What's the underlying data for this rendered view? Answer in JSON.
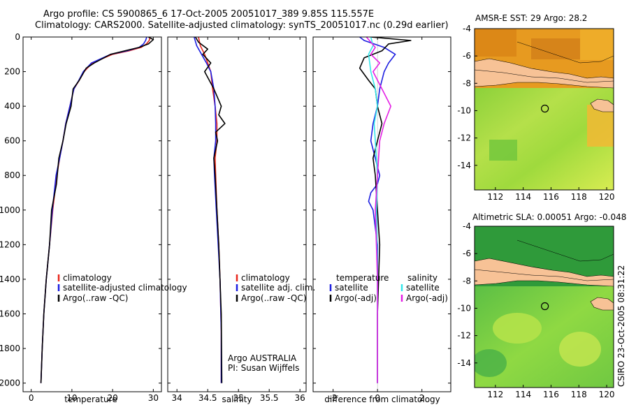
{
  "header": {
    "line1": "Argo profile: CS 5900865_6 17-Oct-2005 20051017_389 9.85S 115.557E",
    "line2": "Climatology: CARS2000. Satellite-adjusted climatology: synTS_20051017.nc (0.29d earlier)"
  },
  "side_label": "CSIRO 23-Oct-2005 08:31:22",
  "colors": {
    "red": "#e8261c",
    "blue": "#1c1ee0",
    "black": "#000000",
    "cyan": "#33e6ea",
    "magenta": "#e41ee4",
    "land": "#f7c296",
    "ocean_green": "#3aa83c"
  },
  "chart_data": [
    {
      "type": "line",
      "id": "temperature",
      "xlabel": "temperature",
      "ylabel": "",
      "xlim": [
        -2,
        32
      ],
      "ylim": [
        2050,
        0
      ],
      "xticks": [
        0,
        10,
        20,
        30
      ],
      "yticks": [
        0,
        200,
        400,
        600,
        800,
        1000,
        1200,
        1400,
        1600,
        1800,
        2000
      ],
      "legend": [
        "climatology",
        "satellite-adjusted climatology",
        "Argo(..raw -QC)"
      ],
      "series": [
        {
          "name": "climatology",
          "color": "red",
          "x": [
            29.2,
            29,
            28.3,
            27,
            24,
            20,
            15,
            13,
            11.8,
            10.5,
            9.5,
            8.5,
            7.8,
            7.0,
            6.3,
            5.3,
            4.5,
            3.7,
            3.1,
            2.7,
            2.4
          ],
          "y": [
            0,
            20,
            40,
            60,
            80,
            100,
            150,
            200,
            250,
            300,
            400,
            500,
            600,
            700,
            800,
            1000,
            1200,
            1400,
            1600,
            1800,
            2000
          ]
        },
        {
          "name": "satellite-adjusted climatology",
          "color": "blue",
          "x": [
            28.4,
            28.1,
            27.6,
            26.5,
            23.5,
            19.5,
            14.8,
            12.8,
            11.7,
            10.5,
            9.5,
            8.5,
            7.8,
            7.0,
            6.1,
            5.2,
            4.5,
            3.7,
            3.1,
            2.7,
            2.4
          ],
          "y": [
            0,
            20,
            40,
            60,
            80,
            100,
            150,
            200,
            250,
            300,
            400,
            500,
            600,
            700,
            800,
            1000,
            1200,
            1400,
            1600,
            1800,
            2000
          ]
        },
        {
          "name": "Argo(..raw -QC)",
          "color": "black",
          "x": [
            28.8,
            30.0,
            28.8,
            26.5,
            23.0,
            19.5,
            15.5,
            13.5,
            11.8,
            10.3,
            9.8,
            8.6,
            7.8,
            6.8,
            6.2,
            5.0,
            4.5,
            3.7,
            3.1,
            2.7,
            2.4
          ],
          "y": [
            0,
            15,
            40,
            60,
            80,
            100,
            150,
            180,
            250,
            300,
            400,
            500,
            600,
            700,
            850,
            1000,
            1200,
            1400,
            1600,
            1800,
            2000
          ]
        }
      ]
    },
    {
      "type": "line",
      "id": "salinity",
      "xlabel": "salinity",
      "ylabel": "",
      "xlim": [
        33.85,
        36.1
      ],
      "ylim": [
        2050,
        0
      ],
      "xticks": [
        34,
        34.5,
        35,
        35.5,
        36
      ],
      "yticks": [
        0,
        200,
        400,
        600,
        800,
        1000,
        1200,
        1400,
        1600,
        1800,
        2000
      ],
      "legend": [
        "climatology",
        "satellite adj. clim.",
        "Argo(..raw -QC)"
      ],
      "annotation": [
        "Argo AUSTRALIA",
        "PI: Susan Wijffels"
      ],
      "series": [
        {
          "name": "climatology",
          "color": "red",
          "x": [
            34.35,
            34.38,
            34.45,
            34.5,
            34.55,
            34.58,
            34.62,
            34.65,
            34.65,
            34.62,
            34.63,
            34.65,
            34.68,
            34.7,
            34.72,
            34.72
          ],
          "y": [
            0,
            50,
            100,
            150,
            200,
            300,
            400,
            500,
            600,
            700,
            800,
            1000,
            1200,
            1400,
            1700,
            2000
          ]
        },
        {
          "name": "satellite adj. clim.",
          "color": "blue",
          "x": [
            34.28,
            34.32,
            34.4,
            34.48,
            34.55,
            34.6,
            34.62,
            34.63,
            34.63,
            34.6,
            34.61,
            34.64,
            34.67,
            34.7,
            34.72,
            34.72
          ],
          "y": [
            0,
            50,
            100,
            150,
            200,
            300,
            400,
            500,
            600,
            700,
            800,
            1000,
            1200,
            1400,
            1700,
            2000
          ]
        },
        {
          "name": "Argo(..raw -QC)",
          "color": "black",
          "x": [
            34.3,
            34.35,
            34.5,
            34.42,
            34.55,
            34.45,
            34.6,
            34.72,
            34.68,
            34.78,
            34.63,
            34.66,
            34.6,
            34.62,
            34.65,
            34.68,
            34.72,
            34.73
          ],
          "y": [
            0,
            30,
            70,
            100,
            150,
            200,
            300,
            400,
            450,
            500,
            550,
            600,
            700,
            800,
            1000,
            1200,
            1600,
            2000
          ]
        }
      ]
    },
    {
      "type": "line",
      "id": "difference",
      "xlabel": "difference from climatology",
      "ylabel": "",
      "xlim": [
        -2.9,
        3.3
      ],
      "ylim": [
        2050,
        0
      ],
      "xticks": [
        -2,
        0,
        2
      ],
      "yticks": [
        0,
        200,
        400,
        600,
        800,
        1000,
        1200,
        1400,
        1600,
        1800,
        2000
      ],
      "legend_left_title": "temperature",
      "legend_right_title": "salinity",
      "legend": [
        "satellite",
        "Argo(-adj)",
        "satellite",
        "Argo(-adj)"
      ],
      "series": [
        {
          "name": "temperature satellite",
          "color": "blue",
          "x": [
            -0.8,
            -0.6,
            0.3,
            0.8,
            0.5,
            0.3,
            0.1,
            0.0,
            -0.2,
            -0.3,
            -0.1,
            0.1,
            0.0,
            -0.3,
            -0.4,
            -0.2,
            0.0,
            0.0,
            0.0
          ],
          "y": [
            0,
            20,
            60,
            100,
            150,
            200,
            300,
            400,
            500,
            600,
            700,
            800,
            850,
            900,
            950,
            1000,
            1200,
            1600,
            2000
          ]
        },
        {
          "name": "temperature Argo(-adj)",
          "color": "black",
          "x": [
            -0.3,
            1.5,
            0.5,
            0.2,
            -0.6,
            -0.8,
            -0.4,
            -0.1,
            0.0,
            0.2,
            0.0,
            -0.2,
            -0.1,
            0.0,
            0.1,
            0.0,
            0.0
          ],
          "y": [
            0,
            20,
            40,
            80,
            120,
            180,
            250,
            300,
            400,
            500,
            600,
            700,
            800,
            1000,
            1200,
            1600,
            2000
          ]
        },
        {
          "name": "salinity satellite",
          "color": "cyan",
          "x": [
            -0.3,
            -0.2,
            -0.4,
            -0.3,
            -0.1,
            0.0,
            -0.15,
            -0.1,
            0.0,
            -0.05,
            0.0,
            0.0
          ],
          "y": [
            0,
            50,
            100,
            200,
            300,
            400,
            500,
            600,
            800,
            1000,
            1400,
            2000
          ]
        },
        {
          "name": "salinity Argo(-adj)",
          "color": "magenta",
          "x": [
            -0.5,
            -0.3,
            -0.1,
            -0.3,
            0.1,
            -0.2,
            0.2,
            0.6,
            0.3,
            0.1,
            0.0,
            -0.1,
            0.0,
            0.0
          ],
          "y": [
            0,
            30,
            60,
            100,
            150,
            200,
            300,
            400,
            500,
            600,
            800,
            1000,
            1400,
            2000
          ]
        }
      ]
    },
    {
      "type": "heatmap",
      "id": "amsr-map",
      "title": "AMSR-E SST: 29 Argo: 28.2",
      "xlim": [
        110.5,
        120.5
      ],
      "ylim": [
        -15.8,
        -4
      ],
      "xticks": [
        112,
        114,
        116,
        118,
        120
      ],
      "yticks": [
        -14,
        -12,
        -10,
        -8,
        -6,
        -4
      ],
      "argo_position": {
        "lon": 115.557,
        "lat": -9.85
      }
    },
    {
      "type": "heatmap",
      "id": "sla-map",
      "title": "Altimetric SLA: 0.00051 Argo: -0.048",
      "xlim": [
        110.5,
        120.5
      ],
      "ylim": [
        -15.8,
        -4
      ],
      "xticks": [
        112,
        114,
        116,
        118,
        120
      ],
      "yticks": [
        -14,
        -12,
        -10,
        -8,
        -6,
        -4
      ],
      "argo_position": {
        "lon": 115.557,
        "lat": -9.85
      }
    }
  ]
}
